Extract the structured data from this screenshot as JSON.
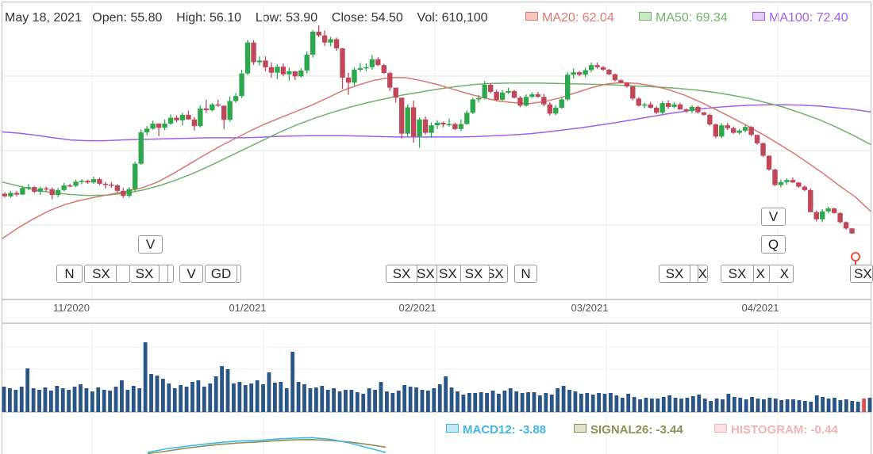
{
  "header": {
    "date": "May 18, 2021",
    "open_label": "Open:",
    "open": "55.80",
    "high_label": "High:",
    "high": "56.10",
    "low_label": "Low:",
    "low": "53.90",
    "close_label": "Close:",
    "close": "54.50",
    "vol_label": "Vol:",
    "vol": "610,100"
  },
  "ma_legend": [
    {
      "label": "MA20: 62.04",
      "color": "#d9776f"
    },
    {
      "label": "MA50: 69.34",
      "color": "#6fb26a"
    },
    {
      "label": "MA100: 72.40",
      "color": "#a05fe8"
    }
  ],
  "macd_legend": [
    {
      "label": "MACD12: -3.88",
      "color": "#3fb7e6"
    },
    {
      "label": "SIGNAL26: -3.44",
      "color": "#8e8e55"
    },
    {
      "label": "HISTOGRAM: -0.44",
      "color": "#f2b3b3"
    }
  ],
  "colors": {
    "up": "#2ea84d",
    "down": "#c0475a",
    "volume": "#2a5587",
    "volume_last": "#d9534f"
  },
  "x_axis": {
    "ticks": [
      "11/2020",
      "01/2021",
      "02/2021",
      "03/2021",
      "04/2021"
    ]
  },
  "events": [
    {
      "label": "N"
    },
    {
      "label": "SX"
    },
    {
      "label": "SX"
    },
    {
      "label": "V"
    },
    {
      "label": "V"
    },
    {
      "label": "GD"
    },
    {
      "label": "SX"
    },
    {
      "label": "SX"
    },
    {
      "label": "SX"
    },
    {
      "label": "SX"
    },
    {
      "label": "SX"
    },
    {
      "label": "N"
    },
    {
      "label": "SX"
    },
    {
      "label": "X"
    },
    {
      "label": "SX"
    },
    {
      "label": "X"
    },
    {
      "label": "X"
    },
    {
      "label": "V"
    },
    {
      "label": "Q"
    },
    {
      "label": "SX"
    }
  ],
  "chart_data": {
    "type": "candlestick",
    "price_unit": "USD",
    "candles_ohlc": [
      [
        73.2,
        73.6,
        72.3,
        72.6
      ],
      [
        72.6,
        73.9,
        72.2,
        73.4
      ],
      [
        73.4,
        73.9,
        72.6,
        73.0
      ],
      [
        73.0,
        75.1,
        72.9,
        74.6
      ],
      [
        74.6,
        75.5,
        74.0,
        74.8
      ],
      [
        74.8,
        75.0,
        73.4,
        73.7
      ],
      [
        73.7,
        74.9,
        72.9,
        74.5
      ],
      [
        74.5,
        74.9,
        73.8,
        74.3
      ],
      [
        74.3,
        74.7,
        71.9,
        72.9
      ],
      [
        72.9,
        74.6,
        72.4,
        74.1
      ],
      [
        74.1,
        75.8,
        73.8,
        75.2
      ],
      [
        75.2,
        75.6,
        74.8,
        75.1
      ],
      [
        75.1,
        76.6,
        74.8,
        76.1
      ],
      [
        76.1,
        76.7,
        75.5,
        76.3
      ],
      [
        76.3,
        76.6,
        75.6,
        75.9
      ],
      [
        75.9,
        77.3,
        75.6,
        76.7
      ],
      [
        76.7,
        77.1,
        75.2,
        75.6
      ],
      [
        75.6,
        76.0,
        74.5,
        75.4
      ],
      [
        75.4,
        76.0,
        74.6,
        75.2
      ],
      [
        75.2,
        75.5,
        73.5,
        73.9
      ],
      [
        73.9,
        74.6,
        72.2,
        72.7
      ],
      [
        72.7,
        74.8,
        72.3,
        74.3
      ],
      [
        74.3,
        80.9,
        73.8,
        80.4
      ],
      [
        80.4,
        88.6,
        80.1,
        87.9
      ],
      [
        87.9,
        89.4,
        87.2,
        88.8
      ],
      [
        88.8,
        90.7,
        88.5,
        90.0
      ],
      [
        90.0,
        89.6,
        87.0,
        89.0
      ],
      [
        89.0,
        91.0,
        88.4,
        90.0
      ],
      [
        90.0,
        92.2,
        89.7,
        91.4
      ],
      [
        91.4,
        92.0,
        90.3,
        90.8
      ],
      [
        90.8,
        92.6,
        89.6,
        92.1
      ],
      [
        92.1,
        93.1,
        90.9,
        91.0
      ],
      [
        91.0,
        91.6,
        88.3,
        89.4
      ],
      [
        89.4,
        94.4,
        89.1,
        93.6
      ],
      [
        93.6,
        95.7,
        92.5,
        93.2
      ],
      [
        93.2,
        94.9,
        92.9,
        94.6
      ],
      [
        94.6,
        95.7,
        94.0,
        94.3
      ],
      [
        94.3,
        92.9,
        88.6,
        90.9
      ],
      [
        90.9,
        96.5,
        90.5,
        95.4
      ],
      [
        95.4,
        97.3,
        95.0,
        96.6
      ],
      [
        96.6,
        102.9,
        96.1,
        102.0
      ],
      [
        102.0,
        110.0,
        101.6,
        109.4
      ],
      [
        109.4,
        110.0,
        104.0,
        104.7
      ],
      [
        104.7,
        106.1,
        103.9,
        105.1
      ],
      [
        105.1,
        106.1,
        102.5,
        103.5
      ],
      [
        103.5,
        104.6,
        101.0,
        102.2
      ],
      [
        102.2,
        104.2,
        100.6,
        103.6
      ],
      [
        103.6,
        104.4,
        101.3,
        101.8
      ],
      [
        101.8,
        103.4,
        100.2,
        102.5
      ],
      [
        102.5,
        102.6,
        100.4,
        101.3
      ],
      [
        101.3,
        103.3,
        101.0,
        102.7
      ],
      [
        102.7,
        107.3,
        102.0,
        106.5
      ],
      [
        106.5,
        112.4,
        105.8,
        112.0
      ],
      [
        112.0,
        113.5,
        110.7,
        111.1
      ],
      [
        111.1,
        112.3,
        108.6,
        109.4
      ],
      [
        109.4,
        110.8,
        108.5,
        110.2
      ],
      [
        110.2,
        110.6,
        107.4,
        108.0
      ],
      [
        108.0,
        108.1,
        98.3,
        101.0
      ],
      [
        101.0,
        102.2,
        96.9,
        99.8
      ],
      [
        99.8,
        103.5,
        99.1,
        102.9
      ],
      [
        102.9,
        104.5,
        102.4,
        103.3
      ],
      [
        103.3,
        104.4,
        102.5,
        103.5
      ],
      [
        103.5,
        106.4,
        102.9,
        105.4
      ],
      [
        105.4,
        105.9,
        103.8,
        104.0
      ],
      [
        104.0,
        104.3,
        101.9,
        102.1
      ],
      [
        102.1,
        102.4,
        97.8,
        98.6
      ],
      [
        98.6,
        97.2,
        95.0,
        96.2
      ],
      [
        96.2,
        94.5,
        86.4,
        87.6
      ],
      [
        87.6,
        94.6,
        87.0,
        93.9
      ],
      [
        93.9,
        95.5,
        85.4,
        86.9
      ],
      [
        86.9,
        91.5,
        84.2,
        91.0
      ],
      [
        91.0,
        91.7,
        87.4,
        87.8
      ],
      [
        87.8,
        90.3,
        86.6,
        89.6
      ],
      [
        89.6,
        90.8,
        88.7,
        90.2
      ],
      [
        90.2,
        90.5,
        89.1,
        89.8
      ],
      [
        89.8,
        91.2,
        89.3,
        89.9
      ],
      [
        89.9,
        90.2,
        88.5,
        88.7
      ],
      [
        88.7,
        91.0,
        88.2,
        89.9
      ],
      [
        89.9,
        93.2,
        89.7,
        92.6
      ],
      [
        92.6,
        96.2,
        92.3,
        95.8
      ],
      [
        95.8,
        96.9,
        95.1,
        96.1
      ],
      [
        96.1,
        100.2,
        95.8,
        99.3
      ],
      [
        99.3,
        99.6,
        97.2,
        97.6
      ],
      [
        97.6,
        98.1,
        95.3,
        95.7
      ],
      [
        95.7,
        98.0,
        95.5,
        97.4
      ],
      [
        97.4,
        98.6,
        97.1,
        97.8
      ],
      [
        97.8,
        98.1,
        96.0,
        96.2
      ],
      [
        96.2,
        96.6,
        93.9,
        94.3
      ],
      [
        94.3,
        97.0,
        94.1,
        96.4
      ],
      [
        96.4,
        97.5,
        96.1,
        97.0
      ],
      [
        97.0,
        97.6,
        96.2,
        96.4
      ],
      [
        96.4,
        97.1,
        94.1,
        94.6
      ],
      [
        94.6,
        95.1,
        91.9,
        92.4
      ],
      [
        92.4,
        94.4,
        92.0,
        93.8
      ],
      [
        93.8,
        96.3,
        93.5,
        95.8
      ],
      [
        95.8,
        102.3,
        95.4,
        101.7
      ],
      [
        101.7,
        103.2,
        100.8,
        102.3
      ],
      [
        102.3,
        102.6,
        101.3,
        101.7
      ],
      [
        101.7,
        103.4,
        101.1,
        102.8
      ],
      [
        102.8,
        104.6,
        102.3,
        104.0
      ],
      [
        104.0,
        104.6,
        103.1,
        103.5
      ],
      [
        103.5,
        103.8,
        102.6,
        102.9
      ],
      [
        102.9,
        103.1,
        101.6,
        101.8
      ],
      [
        101.8,
        102.0,
        100.1,
        100.4
      ],
      [
        100.4,
        100.6,
        99.6,
        99.8
      ],
      [
        99.8,
        99.9,
        98.6,
        98.9
      ],
      [
        98.9,
        99.0,
        95.6,
        96.0
      ],
      [
        96.0,
        96.3,
        94.1,
        94.3
      ],
      [
        94.3,
        95.0,
        93.7,
        94.6
      ],
      [
        94.6,
        95.2,
        93.6,
        93.8
      ],
      [
        93.8,
        94.2,
        92.3,
        92.6
      ],
      [
        92.6,
        95.4,
        92.3,
        94.9
      ],
      [
        94.9,
        95.6,
        93.5,
        94.0
      ],
      [
        94.0,
        95.2,
        93.7,
        94.6
      ],
      [
        94.6,
        95.0,
        93.3,
        93.4
      ],
      [
        93.4,
        93.6,
        92.6,
        93.0
      ],
      [
        93.0,
        94.4,
        92.5,
        94.0
      ],
      [
        94.0,
        94.3,
        92.4,
        92.7
      ],
      [
        92.7,
        92.8,
        91.9,
        92.1
      ],
      [
        92.1,
        92.4,
        89.5,
        89.8
      ],
      [
        89.8,
        90.0,
        86.5,
        86.9
      ],
      [
        86.9,
        90.1,
        86.5,
        89.6
      ],
      [
        89.6,
        90.2,
        88.5,
        88.9
      ],
      [
        88.9,
        89.3,
        87.5,
        87.8
      ],
      [
        87.8,
        88.7,
        87.4,
        88.3
      ],
      [
        88.3,
        89.7,
        87.9,
        89.2
      ],
      [
        89.2,
        89.4,
        87.0,
        87.3
      ],
      [
        87.3,
        86.8,
        85.0,
        85.3
      ],
      [
        85.3,
        85.5,
        82.0,
        82.3
      ],
      [
        82.3,
        82.4,
        78.7,
        79.0
      ],
      [
        79.0,
        79.2,
        75.0,
        75.3
      ],
      [
        75.3,
        76.6,
        74.7,
        76.0
      ],
      [
        76.0,
        76.9,
        75.4,
        76.5
      ],
      [
        76.5,
        77.1,
        75.8,
        75.9
      ],
      [
        75.9,
        76.0,
        74.6,
        74.9
      ],
      [
        74.9,
        75.2,
        73.8,
        74.1
      ],
      [
        74.1,
        74.5,
        70.0,
        68.8
      ],
      [
        68.8,
        69.2,
        66.6,
        67.1
      ],
      [
        67.1,
        69.5,
        66.4,
        69.0
      ],
      [
        69.0,
        70.1,
        68.6,
        69.7
      ],
      [
        69.7,
        69.9,
        68.4,
        68.6
      ],
      [
        68.6,
        68.8,
        66.1,
        66.4
      ],
      [
        66.4,
        66.6,
        64.6,
        64.9
      ],
      [
        64.9,
        65.0,
        63.6,
        63.7
      ],
      [
        55.8,
        56.1,
        53.9,
        54.5
      ]
    ],
    "ma20": [
      62.5,
      65.0,
      67.2,
      69.1,
      70.6,
      71.6,
      72.4,
      73.1,
      73.8,
      74.6,
      76.0,
      78.0,
      80.2,
      82.4,
      84.5,
      86.4,
      88.3,
      90.0,
      91.5,
      93.0,
      94.5,
      96.2,
      98.0,
      99.3,
      100.4,
      101.0,
      101.0,
      100.3,
      99.4,
      98.3,
      97.2,
      96.2,
      95.4,
      95.0,
      94.8,
      95.3,
      96.2,
      97.4,
      98.6,
      99.5,
      99.8,
      99.6,
      99.0,
      98.1,
      96.8,
      95.2,
      93.4,
      91.5,
      89.6,
      87.5,
      85.3,
      83.0,
      80.5,
      77.9,
      75.1,
      72.5,
      69.0
    ],
    "ma50": [
      76.0,
      75.0,
      74.0,
      73.4,
      73.0,
      72.8,
      72.9,
      73.3,
      74.0,
      75.1,
      76.5,
      78.1,
      80.0,
      82.0,
      84.0,
      86.0,
      88.0,
      89.8,
      91.3,
      92.7,
      93.9,
      95.0,
      95.9,
      96.8,
      97.5,
      98.2,
      98.8,
      99.3,
      99.6,
      99.7,
      99.7,
      99.7,
      99.6,
      99.5,
      99.4,
      99.3,
      99.1,
      98.9,
      98.7,
      98.4,
      98.0,
      97.5,
      96.8,
      96.0,
      95.0,
      93.9,
      92.5,
      91.0,
      89.2,
      87.2,
      85.0
    ],
    "ma100": [
      88.0,
      87.7,
      87.2,
      86.6,
      86.1,
      85.9,
      85.9,
      86.1,
      86.2,
      86.3,
      86.4,
      86.5,
      86.6,
      86.6,
      86.6,
      86.7,
      86.9,
      87.0,
      87.1,
      87.1,
      87.1,
      87.0,
      86.9,
      86.8,
      86.8,
      86.8,
      86.8,
      86.8,
      86.9,
      87.1,
      87.3,
      87.6,
      88.0,
      88.5,
      89.0,
      89.6,
      90.2,
      90.9,
      91.6,
      92.3,
      92.9,
      93.5,
      93.9,
      94.2,
      94.4,
      94.5,
      94.5,
      94.4,
      94.2,
      93.8,
      93.4,
      92.8
    ],
    "volume": [
      32,
      30,
      28,
      32,
      55,
      30,
      28,
      31,
      27,
      33,
      30,
      28,
      32,
      35,
      30,
      26,
      31,
      28,
      27,
      32,
      40,
      28,
      33,
      30,
      88,
      48,
      46,
      42,
      36,
      30,
      34,
      32,
      38,
      40,
      32,
      36,
      45,
      58,
      54,
      36,
      38,
      34,
      36,
      40,
      35,
      50,
      37,
      38,
      30,
      76,
      38,
      35,
      30,
      31,
      33,
      28,
      30,
      26,
      28,
      28,
      25,
      23,
      30,
      28,
      38,
      26,
      24,
      27,
      34,
      32,
      31,
      28,
      27,
      30,
      35,
      45,
      31,
      26,
      22,
      24,
      24,
      25,
      24,
      27,
      23,
      27,
      30,
      26,
      24,
      25,
      25,
      21,
      24,
      22,
      30,
      33,
      28,
      26,
      23,
      24,
      22,
      24,
      23,
      24,
      21,
      18,
      23,
      19,
      16,
      18,
      17,
      17,
      19,
      21,
      18,
      17,
      18,
      20,
      22,
      17,
      14,
      17,
      16,
      23,
      19,
      18,
      16,
      19,
      17,
      16,
      18,
      17,
      15,
      16,
      16,
      15,
      14,
      13,
      21,
      19,
      17,
      18,
      15,
      16,
      14,
      13,
      17,
      18
    ],
    "macd12": [
      -8.0,
      -6.5,
      -5.5,
      -4.6,
      -3.8,
      -3.2,
      -3.0,
      -2.4,
      -2.0,
      -1.8,
      -2.5,
      -4.0,
      -6.0,
      -8.0
    ],
    "signal26": [
      -8.5,
      -7.5,
      -6.3,
      -5.4,
      -4.6,
      -4.0,
      -3.6,
      -3.1,
      -2.7,
      -2.6,
      -3.0,
      -3.6,
      -4.6,
      -5.8
    ],
    "y_range": [
      46,
      112
    ],
    "volume_max": 90
  }
}
